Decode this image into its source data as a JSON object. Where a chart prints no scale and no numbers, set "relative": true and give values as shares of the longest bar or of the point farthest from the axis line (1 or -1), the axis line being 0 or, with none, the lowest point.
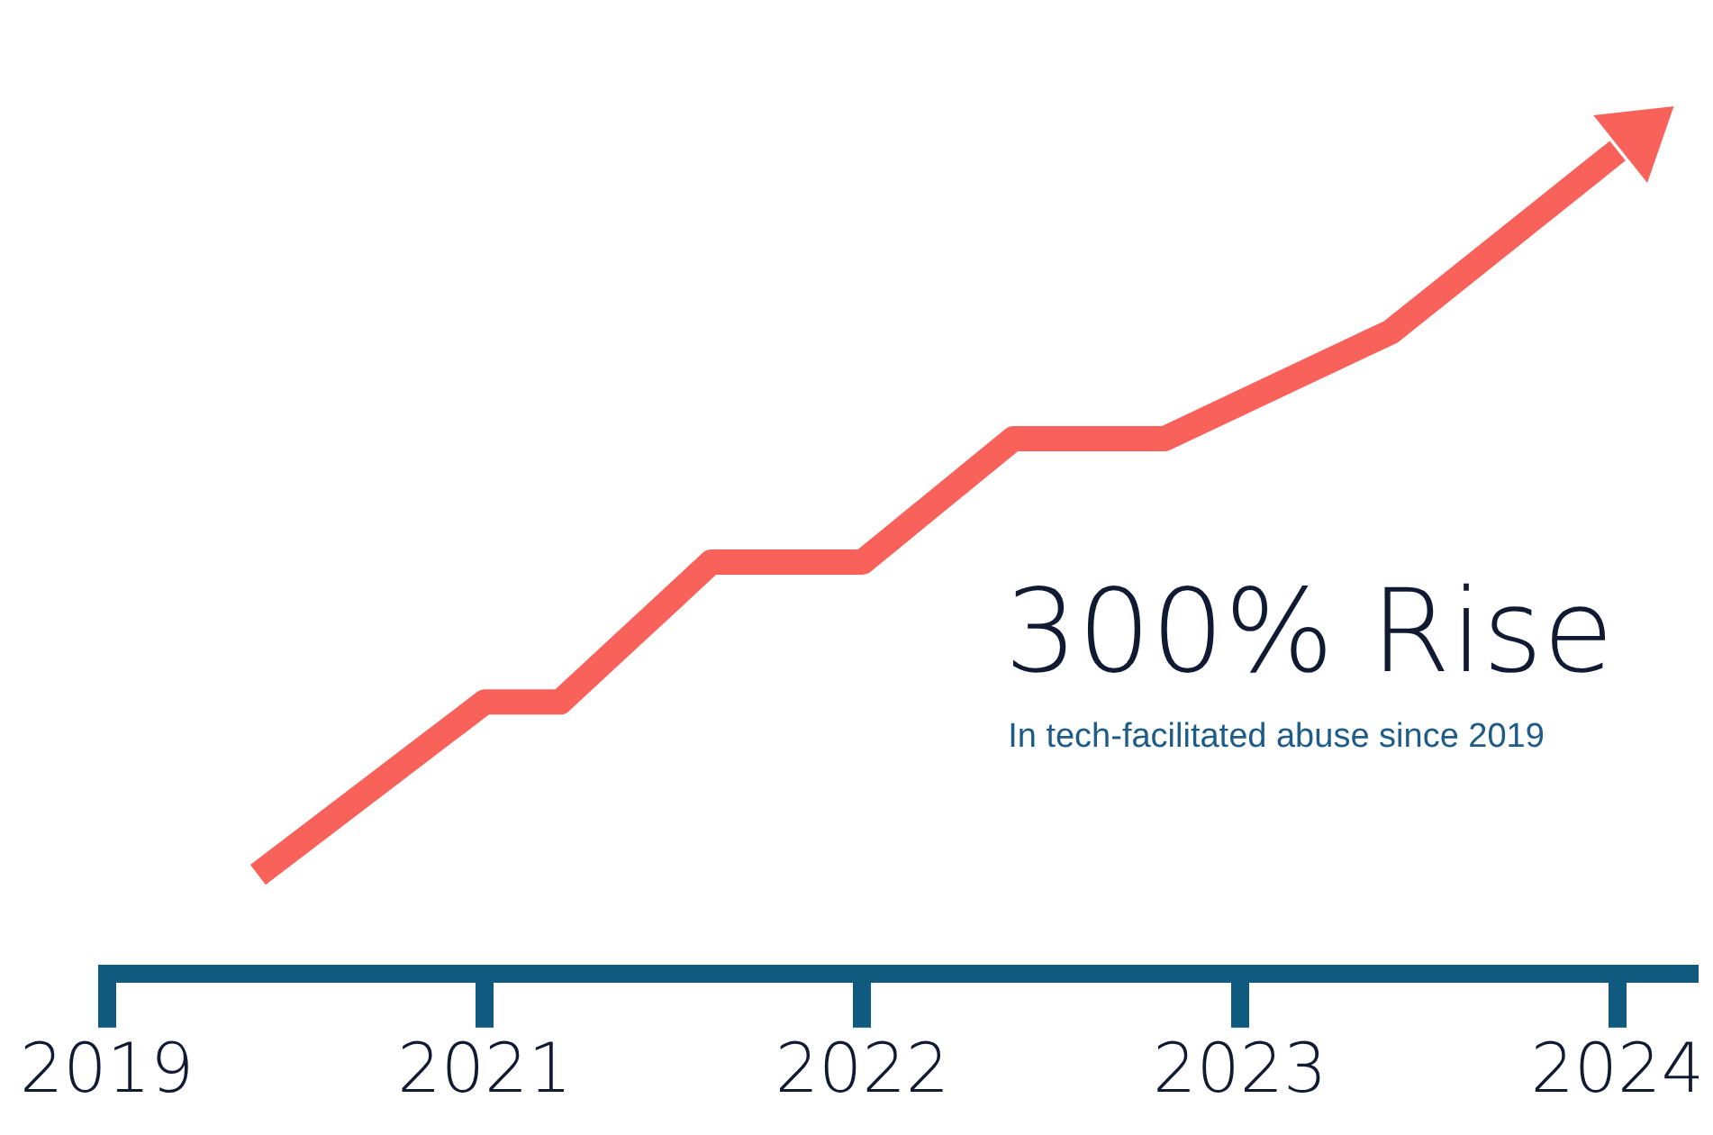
{
  "chart_data": {
    "type": "line",
    "relative": true,
    "categories": [
      "2019",
      null,
      null,
      null,
      null,
      "2021",
      null,
      null,
      null,
      null,
      "2022",
      null,
      null,
      null,
      null,
      "2023",
      null,
      null,
      null,
      null,
      "2024",
      null
    ],
    "values": [
      null,
      null,
      0.12,
      null,
      null,
      0.33,
      0.33,
      null,
      0.5,
      null,
      0.5,
      null,
      0.65,
      null,
      0.65,
      null,
      null,
      0.78,
      null,
      null,
      1.0,
      null
    ],
    "color": "#f9625b",
    "marker": "none",
    "line_style": "solid",
    "grid": false,
    "legend": false,
    "annotations": [
      "300% Rise",
      "In tech-facilitated abuse since 2019"
    ]
  }
}
